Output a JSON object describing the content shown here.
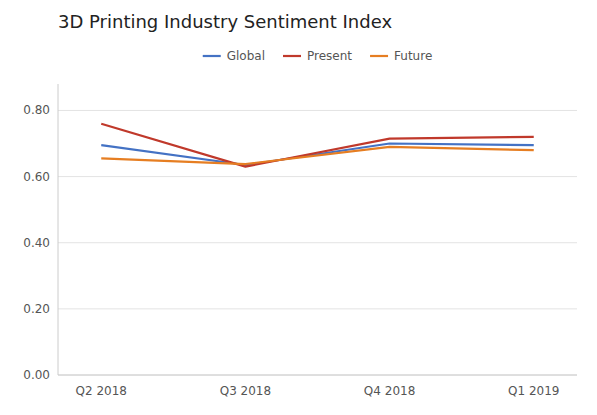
{
  "chart_data": {
    "type": "line",
    "title": "3D Printing Industry Sentiment Index",
    "categories": [
      "Q2 2018",
      "Q3 2018",
      "Q4 2018",
      "Q1 2019"
    ],
    "series": [
      {
        "name": "Global",
        "color": "#4472C4",
        "values": [
          0.695,
          0.635,
          0.7,
          0.695
        ]
      },
      {
        "name": "Present",
        "color": "#C0392B",
        "values": [
          0.76,
          0.63,
          0.715,
          0.72
        ]
      },
      {
        "name": "Future",
        "color": "#E67E22",
        "values": [
          0.655,
          0.638,
          0.69,
          0.68
        ]
      }
    ],
    "ylim": [
      0.0,
      0.88
    ],
    "yticks": [
      {
        "value": 0.0,
        "label": "0.00"
      },
      {
        "value": 0.2,
        "label": "0.20"
      },
      {
        "value": 0.4,
        "label": "0.40"
      },
      {
        "value": 0.6,
        "label": "0.60"
      },
      {
        "value": 0.8,
        "label": "0.80"
      }
    ],
    "grid": true,
    "legend": "top"
  }
}
